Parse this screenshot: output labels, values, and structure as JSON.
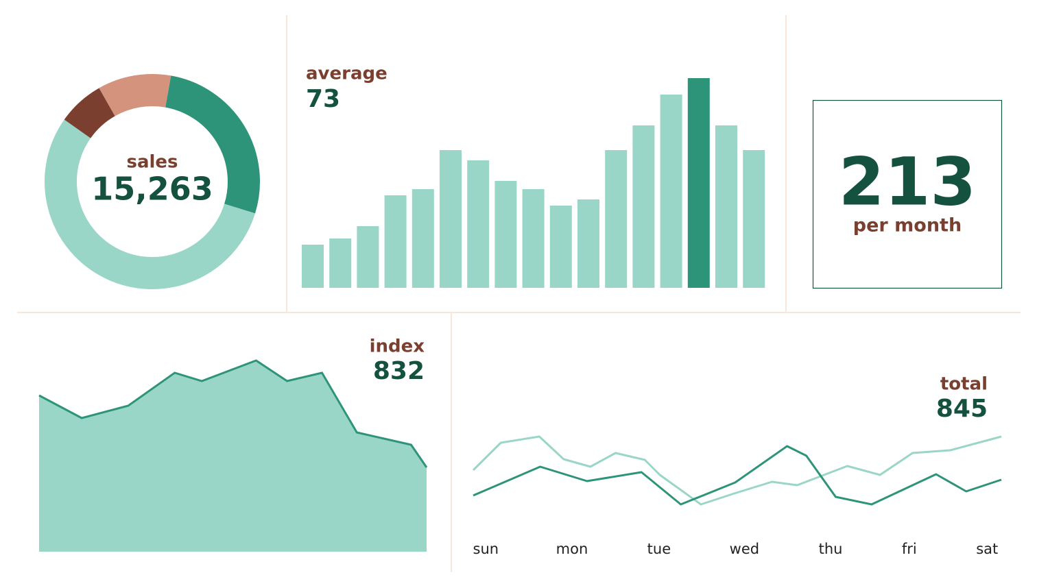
{
  "chart_data": [
    {
      "type": "donut",
      "title": "sales",
      "subtitle": "15,263",
      "values": [
        27,
        55,
        7,
        11
      ],
      "colors": [
        "#2e9479",
        "#9ad6c7",
        "#7a3f2f",
        "#d4937d"
      ]
    },
    {
      "type": "bar",
      "title": "average",
      "subtitle": "73",
      "values": [
        21,
        24,
        30,
        45,
        48,
        67,
        62,
        52,
        48,
        40,
        43,
        67,
        79,
        94,
        102,
        79,
        67
      ],
      "colors": [
        "#9ad6c7",
        "#9ad6c7",
        "#9ad6c7",
        "#9ad6c7",
        "#9ad6c7",
        "#9ad6c7",
        "#9ad6c7",
        "#9ad6c7",
        "#9ad6c7",
        "#9ad6c7",
        "#9ad6c7",
        "#9ad6c7",
        "#9ad6c7",
        "#9ad6c7",
        "#2e9479",
        "#9ad6c7",
        "#9ad6c7"
      ],
      "ylim": [
        0,
        110
      ]
    },
    {
      "type": "area",
      "title": "index",
      "subtitle": "832",
      "x": [
        0,
        11,
        23,
        35,
        42,
        56,
        64,
        73,
        82,
        96,
        100
      ],
      "values": [
        76,
        65,
        71,
        87,
        83,
        93,
        83,
        87,
        58,
        52,
        41
      ],
      "xlim": [
        0,
        100
      ],
      "ylim": [
        0,
        100
      ],
      "color": "#9ad6c7",
      "line_color": "#2e9479"
    },
    {
      "type": "line",
      "title": "total",
      "subtitle": "845",
      "xlim": [
        -0.15,
        6.16
      ],
      "ylim": [
        0,
        100
      ],
      "xticks": [
        {
          "value": 0,
          "label": "sun"
        },
        {
          "value": 1.03,
          "label": "mon"
        },
        {
          "value": 2.07,
          "label": "tue"
        },
        {
          "value": 3.09,
          "label": "wed"
        },
        {
          "value": 4.12,
          "label": "thu"
        },
        {
          "value": 5.06,
          "label": "fri"
        },
        {
          "value": 5.99,
          "label": "sat"
        }
      ],
      "series": [
        {
          "color": "#9ad6c7",
          "x": [
            -0.15,
            0.18,
            0.64,
            0.93,
            1.25,
            1.55,
            1.9,
            2.08,
            2.57,
            2.97,
            3.42,
            3.72,
            4.32,
            4.71,
            5.1,
            5.55,
            6.16
          ],
          "values": [
            47,
            67,
            71.5,
            55,
            49.5,
            59.5,
            54.5,
            43.5,
            22,
            30,
            38.5,
            36,
            50,
            43.5,
            59.5,
            61.5,
            71.5
          ]
        },
        {
          "color": "#2e9479",
          "x": [
            -0.15,
            0.65,
            1.21,
            1.86,
            2.33,
            2.98,
            3.6,
            3.83,
            4.18,
            4.61,
            5.38,
            5.74,
            6.16
          ],
          "values": [
            28.5,
            49.5,
            39,
            45.5,
            22,
            38,
            64.5,
            57.5,
            27.5,
            22,
            44,
            31.5,
            40
          ]
        }
      ]
    }
  ],
  "kpi": {
    "value": "213",
    "label": "per month"
  }
}
